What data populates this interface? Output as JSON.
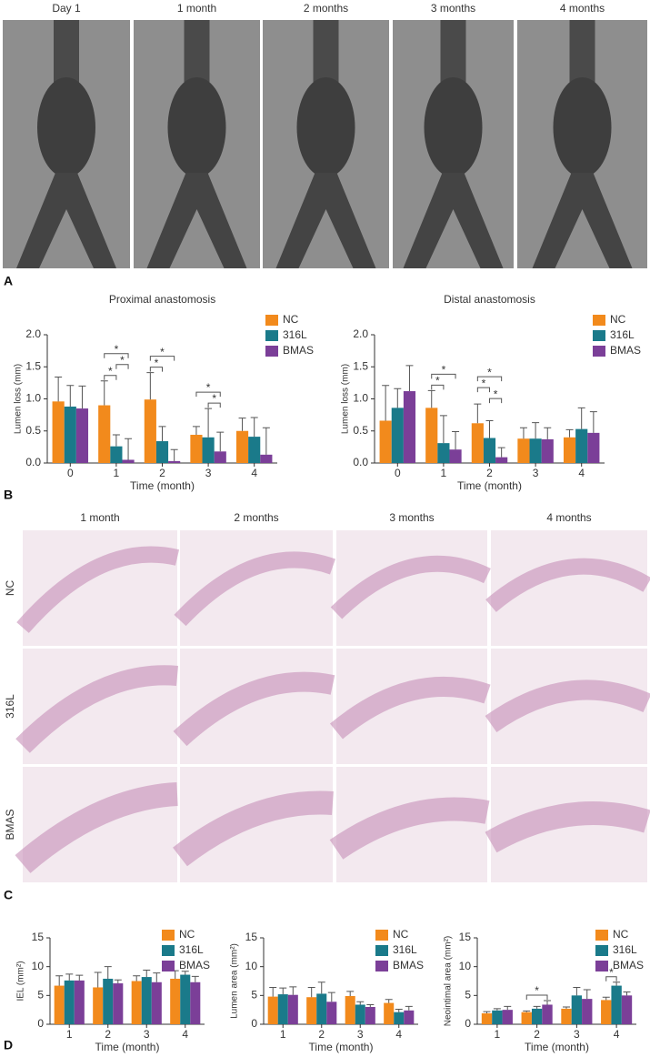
{
  "panel_a": {
    "letter": "A",
    "columns": [
      "Day 1",
      "1 month",
      "2 months",
      "3 months",
      "4 months"
    ]
  },
  "panel_b": {
    "letter": "B"
  },
  "panel_c": {
    "letter": "C",
    "columns": [
      "1 month",
      "2 months",
      "3 months",
      "4 months"
    ],
    "rows": [
      "NC",
      "316L",
      "BMAS"
    ]
  },
  "panel_d": {
    "letter": "D"
  },
  "chart_data": [
    {
      "type": "bar",
      "title": "Proximal anastomosis",
      "xlabel": "Time (month)",
      "ylabel": "Lumen loss (mm)",
      "categories": [
        "0",
        "1",
        "2",
        "3",
        "4"
      ],
      "series": [
        {
          "name": "NC",
          "color": "#f28a1c",
          "values": [
            0.96,
            0.9,
            0.99,
            0.44,
            0.5
          ],
          "errors": [
            0.38,
            0.38,
            0.42,
            0.13,
            0.2
          ]
        },
        {
          "name": "316L",
          "color": "#1a7a8a",
          "values": [
            0.88,
            0.26,
            0.34,
            0.4,
            0.41
          ],
          "errors": [
            0.33,
            0.18,
            0.23,
            0.45,
            0.3
          ]
        },
        {
          "name": "BMAS",
          "color": "#7b3f98",
          "values": [
            0.85,
            0.05,
            0.03,
            0.18,
            0.13
          ],
          "errors": [
            0.35,
            0.33,
            0.18,
            0.3,
            0.42
          ]
        }
      ],
      "ylim": [
        0,
        2
      ],
      "yticks": [
        {
          "value": 0,
          "label": "0.0"
        },
        {
          "value": 0.5,
          "label": "0.5"
        },
        {
          "value": 1,
          "label": "1.0"
        },
        {
          "value": 1.5,
          "label": "1.5"
        },
        {
          "value": 2,
          "label": "2.0"
        }
      ],
      "annotations": [
        {
          "category": "1",
          "between": [
            "NC",
            "316L"
          ],
          "label": "*"
        },
        {
          "category": "1",
          "between": [
            "316L",
            "BMAS"
          ],
          "label": "*"
        },
        {
          "category": "1",
          "between": [
            "NC",
            "BMAS"
          ],
          "label": "*"
        },
        {
          "category": "2",
          "between": [
            "NC",
            "316L"
          ],
          "label": "*"
        },
        {
          "category": "2",
          "between": [
            "NC",
            "BMAS"
          ],
          "label": "*"
        },
        {
          "category": "3",
          "between": [
            "316L",
            "BMAS"
          ],
          "label": "*"
        },
        {
          "category": "3",
          "between": [
            "NC",
            "BMAS"
          ],
          "label": "*"
        }
      ]
    },
    {
      "type": "bar",
      "title": "Distal anastomosis",
      "xlabel": "Time (month)",
      "ylabel": "Lumen loss (mm)",
      "categories": [
        "0",
        "1",
        "2",
        "3",
        "4"
      ],
      "series": [
        {
          "name": "NC",
          "color": "#f28a1c",
          "values": [
            0.66,
            0.86,
            0.62,
            0.38,
            0.4
          ],
          "errors": [
            0.55,
            0.27,
            0.3,
            0.17,
            0.12
          ]
        },
        {
          "name": "316L",
          "color": "#1a7a8a",
          "values": [
            0.86,
            0.31,
            0.39,
            0.38,
            0.53
          ],
          "errors": [
            0.3,
            0.43,
            0.27,
            0.25,
            0.33
          ]
        },
        {
          "name": "BMAS",
          "color": "#7b3f98",
          "values": [
            1.12,
            0.21,
            0.09,
            0.37,
            0.47
          ],
          "errors": [
            0.4,
            0.28,
            0.15,
            0.18,
            0.33
          ]
        }
      ],
      "ylim": [
        0,
        2
      ],
      "yticks": [
        {
          "value": 0,
          "label": "0.0"
        },
        {
          "value": 0.5,
          "label": "0.5"
        },
        {
          "value": 1,
          "label": "1.0"
        },
        {
          "value": 1.5,
          "label": "1.5"
        },
        {
          "value": 2,
          "label": "2.0"
        }
      ],
      "annotations": [
        {
          "category": "1",
          "between": [
            "NC",
            "316L"
          ],
          "label": "*"
        },
        {
          "category": "1",
          "between": [
            "NC",
            "BMAS"
          ],
          "label": "*"
        },
        {
          "category": "2",
          "between": [
            "316L",
            "BMAS"
          ],
          "label": "*"
        },
        {
          "category": "2",
          "between": [
            "NC",
            "316L"
          ],
          "label": "*"
        },
        {
          "category": "2",
          "between": [
            "NC",
            "BMAS"
          ],
          "label": "*"
        }
      ]
    },
    {
      "type": "bar",
      "xlabel": "Time (month)",
      "ylabel": "IEL (mm²)",
      "categories": [
        "1",
        "2",
        "3",
        "4"
      ],
      "series": [
        {
          "name": "NC",
          "color": "#f28a1c",
          "values": [
            6.7,
            6.4,
            7.5,
            7.9
          ],
          "errors": [
            1.7,
            2.6,
            0.9,
            1.4
          ]
        },
        {
          "name": "316L",
          "color": "#1a7a8a",
          "values": [
            7.6,
            7.9,
            8.2,
            8.6
          ],
          "errors": [
            1.1,
            2.1,
            1.2,
            0.6
          ]
        },
        {
          "name": "BMAS",
          "color": "#7b3f98",
          "values": [
            7.6,
            7.1,
            7.3,
            7.3
          ],
          "errors": [
            0.9,
            0.6,
            1.6,
            1.0
          ]
        }
      ],
      "ylim": [
        0,
        15
      ],
      "yticks": [
        0,
        5,
        10,
        15
      ],
      "annotations": []
    },
    {
      "type": "bar",
      "xlabel": "Time (month)",
      "ylabel": "Lumen area (mm²)",
      "categories": [
        "1",
        "2",
        "3",
        "4"
      ],
      "series": [
        {
          "name": "NC",
          "color": "#f28a1c",
          "values": [
            4.8,
            4.7,
            4.9,
            3.7
          ],
          "errors": [
            1.6,
            1.7,
            0.8,
            0.6
          ]
        },
        {
          "name": "316L",
          "color": "#1a7a8a",
          "values": [
            5.2,
            5.3,
            3.4,
            2.1
          ],
          "errors": [
            1.1,
            2.0,
            0.5,
            0.5
          ]
        },
        {
          "name": "BMAS",
          "color": "#7b3f98",
          "values": [
            5.1,
            3.9,
            3.0,
            2.4
          ],
          "errors": [
            1.4,
            1.6,
            0.4,
            0.7
          ]
        }
      ],
      "ylim": [
        0,
        15
      ],
      "yticks": [
        0,
        5,
        10,
        15
      ],
      "annotations": []
    },
    {
      "type": "bar",
      "xlabel": "Time (month)",
      "ylabel": "Neointimal area (mm²)",
      "categories": [
        "1",
        "2",
        "3",
        "4"
      ],
      "series": [
        {
          "name": "NC",
          "color": "#f28a1c",
          "values": [
            1.9,
            2.1,
            2.7,
            4.2
          ],
          "errors": [
            0.3,
            0.2,
            0.3,
            0.5
          ]
        },
        {
          "name": "316L",
          "color": "#1a7a8a",
          "values": [
            2.4,
            2.7,
            5.0,
            6.7
          ],
          "errors": [
            0.3,
            0.4,
            1.4,
            0.6
          ]
        },
        {
          "name": "BMAS",
          "color": "#7b3f98",
          "values": [
            2.5,
            3.4,
            4.4,
            5.0
          ],
          "errors": [
            0.6,
            0.7,
            1.6,
            0.6
          ]
        }
      ],
      "ylim": [
        0,
        15
      ],
      "yticks": [
        0,
        5,
        10,
        15
      ],
      "annotations": [
        {
          "category": "2",
          "between": [
            "NC",
            "BMAS"
          ],
          "label": "*"
        },
        {
          "category": "4",
          "between": [
            "NC",
            "316L"
          ],
          "label": "*"
        }
      ]
    }
  ]
}
